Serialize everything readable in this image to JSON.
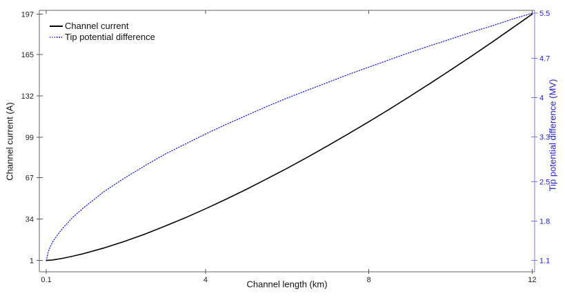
{
  "colors": {
    "black_line": "#000000",
    "blue_line": "#2222e0",
    "blue_text": "#2222cc",
    "right_spine": "#7a7ae0",
    "box_line": "#666666",
    "tick_mark": "#555555",
    "left_text": "#222222"
  },
  "chart_data": {
    "type": "line",
    "title": "",
    "xlabel": "Channel length (km)",
    "ylabel_left": "Channel current (A)",
    "ylabel_right": "Tip potential difference (MV)",
    "grid": false,
    "legend_position": "top-left-inside",
    "xlim": [
      -0.07,
      12.06
    ],
    "ylim_left": [
      -8,
      200
    ],
    "ylim_right": [
      0.9,
      5.55
    ],
    "x_ticks": {
      "values": [
        0.1,
        4,
        8,
        12
      ],
      "labels": [
        "0.1",
        "4",
        "8",
        "12"
      ]
    },
    "y_ticks_left": {
      "values": [
        1,
        34,
        67,
        99,
        132,
        165,
        197
      ],
      "labels": [
        "1",
        "34",
        "67",
        "99",
        "132",
        "165",
        "197"
      ]
    },
    "y_ticks_right": {
      "values": [
        1.1,
        1.8,
        2.5,
        3.3,
        4,
        4.7,
        5.5
      ],
      "labels": [
        "1.1",
        "1.8",
        "2.5",
        "3.3",
        "4",
        "4.7",
        "5.5"
      ]
    },
    "series": [
      {
        "name": "Channel current",
        "axis": "left",
        "color": "#000000",
        "style": "solid",
        "points": [
          [
            0.1,
            1
          ],
          [
            0.25,
            1.4
          ],
          [
            0.5,
            2.7
          ],
          [
            0.75,
            4.4
          ],
          [
            1,
            6.3
          ],
          [
            1.5,
            10.8
          ],
          [
            2,
            16.0
          ],
          [
            2.5,
            21.8
          ],
          [
            3,
            28.2
          ],
          [
            3.5,
            34.9
          ],
          [
            4,
            42.1
          ],
          [
            4.5,
            49.7
          ],
          [
            5,
            57.6
          ],
          [
            5.5,
            65.9
          ],
          [
            6,
            74.4
          ],
          [
            6.5,
            83.2
          ],
          [
            7,
            92.4
          ],
          [
            7.5,
            101.8
          ],
          [
            8,
            111.4
          ],
          [
            8.5,
            121.3
          ],
          [
            9,
            131.5
          ],
          [
            9.5,
            141.9
          ],
          [
            10,
            152.5
          ],
          [
            10.5,
            163.3
          ],
          [
            11,
            174.3
          ],
          [
            11.5,
            185.6
          ],
          [
            12,
            197
          ]
        ]
      },
      {
        "name": "Tip potential difference",
        "axis": "right",
        "color": "#2222e0",
        "style": "dotted",
        "points": [
          [
            0.1,
            1.1
          ],
          [
            0.15,
            1.26
          ],
          [
            0.2,
            1.35
          ],
          [
            0.25,
            1.42
          ],
          [
            0.3,
            1.48
          ],
          [
            0.4,
            1.58
          ],
          [
            0.5,
            1.67
          ],
          [
            0.75,
            1.87
          ],
          [
            1,
            2.03
          ],
          [
            1.5,
            2.32
          ],
          [
            2,
            2.56
          ],
          [
            2.5,
            2.78
          ],
          [
            3,
            2.99
          ],
          [
            3.5,
            3.17
          ],
          [
            4,
            3.35
          ],
          [
            4.5,
            3.52
          ],
          [
            5,
            3.68
          ],
          [
            5.5,
            3.84
          ],
          [
            6,
            3.99
          ],
          [
            6.5,
            4.13
          ],
          [
            7,
            4.27
          ],
          [
            7.5,
            4.41
          ],
          [
            8,
            4.54
          ],
          [
            8.5,
            4.67
          ],
          [
            9,
            4.8
          ],
          [
            9.5,
            4.92
          ],
          [
            10,
            5.04
          ],
          [
            10.5,
            5.16
          ],
          [
            11,
            5.27
          ],
          [
            11.5,
            5.39
          ],
          [
            12,
            5.5
          ]
        ]
      }
    ],
    "legend": [
      {
        "label": "Channel current",
        "style": "solid"
      },
      {
        "label": "Tip potential difference",
        "style": "dotted"
      }
    ]
  }
}
